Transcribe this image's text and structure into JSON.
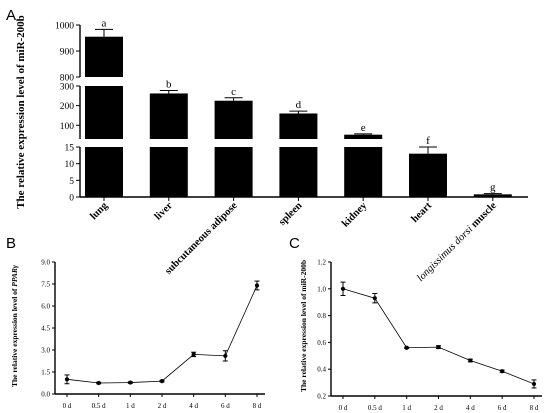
{
  "panels": {
    "a": "A",
    "b": "B",
    "c": "C"
  },
  "chart_data": [
    {
      "type": "bar",
      "ylabel": "The relative expression level of miR-200b",
      "categories": [
        "lung",
        "liver",
        "subcutaneous adipose",
        "spleen",
        "kidney",
        "heart",
        "longissimus dorsi muscle"
      ],
      "category_label_parts": [
        {
          "main": "lung"
        },
        {
          "main": "liver"
        },
        {
          "main": "subcutaneous adipose"
        },
        {
          "main": "spleen"
        },
        {
          "main": "kidney"
        },
        {
          "main": "heart"
        },
        {
          "italic": "longissimus dorsi",
          "main": " muscle"
        }
      ],
      "values": [
        955,
        262,
        225,
        160,
        52,
        13,
        0.8
      ],
      "errors": [
        28,
        15,
        15,
        12,
        4,
        2,
        0.2
      ],
      "significance_letters": [
        "a",
        "b",
        "c",
        "d",
        "e",
        "f",
        "g"
      ],
      "bar_color": "#000000",
      "axis_breaks": true,
      "segments": [
        {
          "range": [
            0,
            15
          ],
          "ticks": [
            "0",
            "5",
            "10",
            "15"
          ]
        },
        {
          "range": [
            30,
            300
          ],
          "ticks": [
            "100",
            "200",
            "300"
          ]
        },
        {
          "range": [
            800,
            1000
          ],
          "ticks": [
            "800",
            "900",
            "1000"
          ]
        }
      ]
    },
    {
      "type": "line",
      "ylabel_prefix": "The relative expression level of ",
      "ylabel_italic": "PPARγ",
      "x": [
        "0 d",
        "0.5 d",
        "1 d",
        "2 d",
        "4 d",
        "6 d",
        "8 d"
      ],
      "values": [
        1.0,
        0.75,
        0.78,
        0.88,
        2.7,
        2.6,
        7.4
      ],
      "errors": [
        0.3,
        0.05,
        0.05,
        0.05,
        0.15,
        0.35,
        0.3
      ],
      "ylim": [
        0,
        9
      ],
      "yticks": [
        "0.0",
        "1.5",
        "3.0",
        "4.5",
        "6.0",
        "7.5",
        "9.0"
      ]
    },
    {
      "type": "line",
      "ylabel": "The relative expression level of miR-200b",
      "x": [
        "0 d",
        "0.5 d",
        "1 d",
        "2 d",
        "4 d",
        "6 d",
        "8 d"
      ],
      "values": [
        1.0,
        0.93,
        0.56,
        0.565,
        0.465,
        0.385,
        0.29
      ],
      "errors": [
        0.05,
        0.035,
        0.005,
        0.01,
        0.01,
        0.008,
        0.03
      ],
      "ylim": [
        0.2,
        1.2
      ],
      "yticks": [
        "0.2",
        "0.4",
        "0.6",
        "0.8",
        "1.0",
        "1.2"
      ]
    }
  ]
}
